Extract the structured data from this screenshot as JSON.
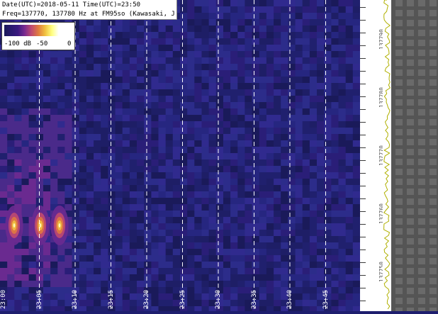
{
  "info": {
    "line1": "Date(UTC)=2018-05-11 Time(UTC)=23:50",
    "line2": "Freq=137770, 137780 Hz at FM95so (Kawasaki, JP)"
  },
  "colorbar": {
    "min_label": "-100 dB",
    "mid_label": "-50",
    "max_label": "0"
  },
  "time_axis": {
    "ticks": [
      "23:00",
      "23:05",
      "23:10",
      "23:15",
      "23:20",
      "23:25",
      "23:30",
      "23:35",
      "23:40",
      "23:45"
    ]
  },
  "freq_scale": {
    "labels": [
      "137790",
      "137780",
      "137770",
      "137760",
      "137750"
    ]
  },
  "colors": {
    "background": "#23237a",
    "signal_core": "#ffff80",
    "signal_halo": "#c04a70",
    "grid_line": "#ffffff"
  }
}
